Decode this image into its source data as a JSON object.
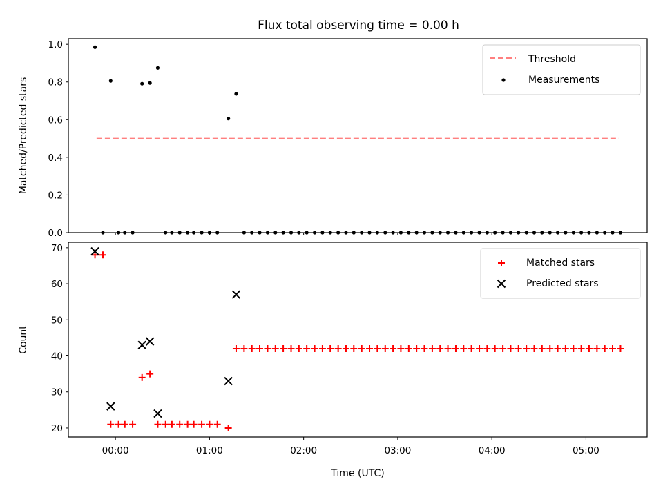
{
  "title": "Flux total observing time = 0.00 h",
  "chart_data": [
    {
      "type": "scatter",
      "ylabel": "Matched/Predicted stars",
      "xlabel": "",
      "xlim": [
        -0.5,
        5.65
      ],
      "ylim": [
        0.0,
        1.03
      ],
      "yticks": [
        0.0,
        0.2,
        0.4,
        0.6,
        0.8,
        1.0
      ],
      "ytick_labels": [
        "0.0",
        "0.2",
        "0.4",
        "0.6",
        "0.8",
        "1.0"
      ],
      "legend": {
        "position": "top-right"
      },
      "threshold": {
        "name": "Threshold",
        "color": "#ff7f7f",
        "y": 0.5,
        "x": [
          -0.2,
          5.35
        ]
      },
      "series": [
        {
          "name": "Measurements",
          "color": "#000000",
          "points": [
            [
              -0.217,
              0.985
            ],
            [
              -0.133,
              0.0
            ],
            [
              -0.05,
              0.806
            ],
            [
              0.033,
              0.0
            ],
            [
              0.1,
              0.0
            ],
            [
              0.183,
              0.0
            ],
            [
              0.283,
              0.791
            ],
            [
              0.367,
              0.795
            ],
            [
              0.45,
              0.875
            ],
            [
              0.533,
              0.0
            ],
            [
              0.6,
              0.0
            ],
            [
              0.683,
              0.0
            ],
            [
              0.767,
              0.0
            ],
            [
              0.833,
              0.0
            ],
            [
              0.917,
              0.0
            ],
            [
              1.0,
              0.0
            ],
            [
              1.083,
              0.0
            ],
            [
              1.2,
              0.606
            ],
            [
              1.283,
              0.737
            ],
            [
              1.367,
              0.0
            ],
            [
              1.45,
              0.0
            ],
            [
              1.533,
              0.0
            ],
            [
              1.617,
              0.0
            ],
            [
              1.7,
              0.0
            ],
            [
              1.783,
              0.0
            ],
            [
              1.867,
              0.0
            ],
            [
              1.95,
              0.0
            ],
            [
              2.033,
              0.0
            ],
            [
              2.117,
              0.0
            ],
            [
              2.2,
              0.0
            ],
            [
              2.283,
              0.0
            ],
            [
              2.367,
              0.0
            ],
            [
              2.45,
              0.0
            ],
            [
              2.533,
              0.0
            ],
            [
              2.617,
              0.0
            ],
            [
              2.7,
              0.0
            ],
            [
              2.783,
              0.0
            ],
            [
              2.867,
              0.0
            ],
            [
              2.95,
              0.0
            ],
            [
              3.033,
              0.0
            ],
            [
              3.117,
              0.0
            ],
            [
              3.2,
              0.0
            ],
            [
              3.283,
              0.0
            ],
            [
              3.367,
              0.0
            ],
            [
              3.45,
              0.0
            ],
            [
              3.533,
              0.0
            ],
            [
              3.617,
              0.0
            ],
            [
              3.7,
              0.0
            ],
            [
              3.783,
              0.0
            ],
            [
              3.867,
              0.0
            ],
            [
              3.95,
              0.0
            ],
            [
              4.033,
              0.0
            ],
            [
              4.117,
              0.0
            ],
            [
              4.2,
              0.0
            ],
            [
              4.283,
              0.0
            ],
            [
              4.367,
              0.0
            ],
            [
              4.45,
              0.0
            ],
            [
              4.533,
              0.0
            ],
            [
              4.617,
              0.0
            ],
            [
              4.7,
              0.0
            ],
            [
              4.783,
              0.0
            ],
            [
              4.867,
              0.0
            ],
            [
              4.95,
              0.0
            ],
            [
              5.033,
              0.0
            ],
            [
              5.117,
              0.0
            ],
            [
              5.2,
              0.0
            ],
            [
              5.283,
              0.0
            ],
            [
              5.367,
              0.0
            ]
          ]
        }
      ]
    },
    {
      "type": "scatter",
      "ylabel": "Count",
      "xlabel": "Time (UTC)",
      "xlim": [
        -0.5,
        5.65
      ],
      "ylim": [
        17.5,
        71.5
      ],
      "yticks": [
        20,
        30,
        40,
        50,
        60,
        70
      ],
      "ytick_labels": [
        "20",
        "30",
        "40",
        "50",
        "60",
        "70"
      ],
      "xticks": [
        0,
        1,
        2,
        3,
        4,
        5
      ],
      "xtick_labels": [
        "00:00",
        "01:00",
        "02:00",
        "03:00",
        "04:00",
        "05:00"
      ],
      "legend": {
        "position": "top-right"
      },
      "series": [
        {
          "name": "Matched stars",
          "color": "#ff0000",
          "marker": "plus",
          "points": [
            [
              -0.217,
              68
            ],
            [
              -0.133,
              68
            ],
            [
              -0.05,
              21
            ],
            [
              0.033,
              21
            ],
            [
              0.1,
              21
            ],
            [
              0.183,
              21
            ],
            [
              0.283,
              34
            ],
            [
              0.367,
              35
            ],
            [
              0.45,
              21
            ],
            [
              0.533,
              21
            ],
            [
              0.6,
              21
            ],
            [
              0.683,
              21
            ],
            [
              0.767,
              21
            ],
            [
              0.833,
              21
            ],
            [
              0.917,
              21
            ],
            [
              1.0,
              21
            ],
            [
              1.083,
              21
            ],
            [
              1.2,
              20
            ],
            [
              1.283,
              42
            ],
            [
              1.367,
              42
            ],
            [
              1.45,
              42
            ],
            [
              1.533,
              42
            ],
            [
              1.617,
              42
            ],
            [
              1.7,
              42
            ],
            [
              1.783,
              42
            ],
            [
              1.867,
              42
            ],
            [
              1.95,
              42
            ],
            [
              2.033,
              42
            ],
            [
              2.117,
              42
            ],
            [
              2.2,
              42
            ],
            [
              2.283,
              42
            ],
            [
              2.367,
              42
            ],
            [
              2.45,
              42
            ],
            [
              2.533,
              42
            ],
            [
              2.617,
              42
            ],
            [
              2.7,
              42
            ],
            [
              2.783,
              42
            ],
            [
              2.867,
              42
            ],
            [
              2.95,
              42
            ],
            [
              3.033,
              42
            ],
            [
              3.117,
              42
            ],
            [
              3.2,
              42
            ],
            [
              3.283,
              42
            ],
            [
              3.367,
              42
            ],
            [
              3.45,
              42
            ],
            [
              3.533,
              42
            ],
            [
              3.617,
              42
            ],
            [
              3.7,
              42
            ],
            [
              3.783,
              42
            ],
            [
              3.867,
              42
            ],
            [
              3.95,
              42
            ],
            [
              4.033,
              42
            ],
            [
              4.117,
              42
            ],
            [
              4.2,
              42
            ],
            [
              4.283,
              42
            ],
            [
              4.367,
              42
            ],
            [
              4.45,
              42
            ],
            [
              4.533,
              42
            ],
            [
              4.617,
              42
            ],
            [
              4.7,
              42
            ],
            [
              4.783,
              42
            ],
            [
              4.867,
              42
            ],
            [
              4.95,
              42
            ],
            [
              5.033,
              42
            ],
            [
              5.117,
              42
            ],
            [
              5.2,
              42
            ],
            [
              5.283,
              42
            ],
            [
              5.367,
              42
            ]
          ]
        },
        {
          "name": "Predicted stars",
          "color": "#000000",
          "marker": "x",
          "points": [
            [
              -0.217,
              69
            ],
            [
              -0.05,
              26
            ],
            [
              0.283,
              43
            ],
            [
              0.367,
              44
            ],
            [
              0.45,
              24
            ],
            [
              1.2,
              33
            ],
            [
              1.283,
              57
            ]
          ]
        }
      ]
    }
  ]
}
